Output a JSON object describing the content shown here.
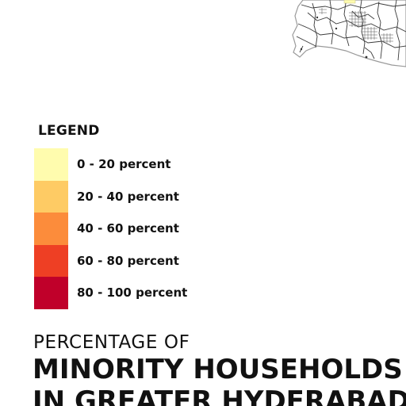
{
  "legend": {
    "title": "LEGEND",
    "items": [
      {
        "label": "0 - 20 percent",
        "color": "#FFFCAE"
      },
      {
        "label": "20 - 40 percent",
        "color": "#FECB64"
      },
      {
        "label": "40 - 60 percent",
        "color": "#FC8C3B"
      },
      {
        "label": "60 - 80 percent",
        "color": "#EE3F24"
      },
      {
        "label": "80 - 100 percent",
        "color": "#C0002A"
      }
    ]
  },
  "heading": {
    "subtitle": "PERCENTAGE OF",
    "title_line1": "MINORITY HOUSEHOLDS",
    "title_line2": "IN GREATER HYDERABAD"
  },
  "colors": {
    "map_fill": "#FFFFFF",
    "map_roads": "#333333",
    "map_highlight": "#FFFCAE"
  }
}
